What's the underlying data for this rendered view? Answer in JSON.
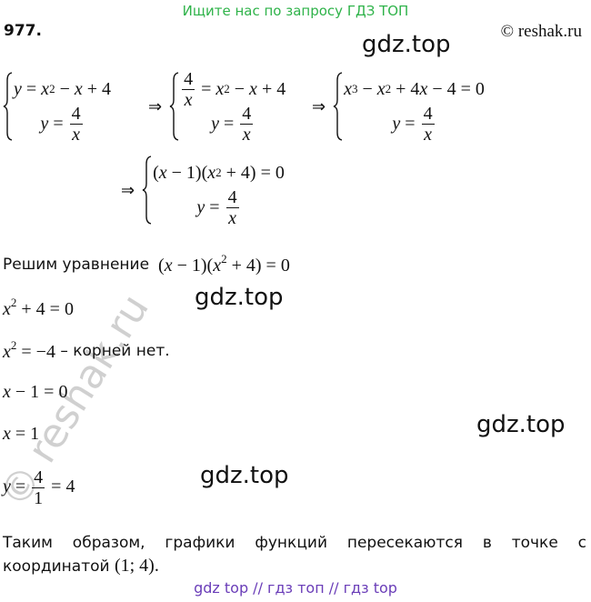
{
  "header": {
    "banner": "Ищите нас по запросу ГДЗ ТОП",
    "number": "977.",
    "copyright": "© reshak.ru"
  },
  "watermarks": [
    "gdz.top",
    "gdz.top",
    "gdz.top",
    "gdz.top"
  ],
  "diagonal_watermark": "© reshak.ru",
  "systems": [
    {
      "lines": [
        [
          "y = x",
          {
            "sup": "2"
          },
          " − x + 4"
        ],
        [
          "y = ",
          {
            "num": "4",
            "den": "x"
          }
        ]
      ]
    },
    {
      "arrow": "⇒",
      "lines": [
        [
          {
            "num": "4",
            "den": "x"
          },
          " = x",
          {
            "sup": "2"
          },
          " − x + 4"
        ],
        [
          "y = ",
          {
            "num": "4",
            "den": "x"
          }
        ]
      ]
    },
    {
      "arrow": "⇒",
      "lines": [
        [
          "x",
          {
            "sup": "3"
          },
          " − x",
          {
            "sup": "2"
          },
          " + 4x − 4 = 0"
        ],
        [
          "y = ",
          {
            "num": "4",
            "den": "x"
          }
        ]
      ]
    },
    {
      "arrow": "⇒",
      "lines": [
        [
          "(x − 1)(x",
          {
            "sup": "2"
          },
          " + 4) = 0"
        ],
        [
          "y = ",
          {
            "num": "4",
            "den": "x"
          }
        ]
      ]
    }
  ],
  "solve": {
    "text": "Решим уравнение",
    "math": [
      "(x − 1)(x",
      {
        "sup": "2"
      },
      " + 4) = 0"
    ]
  },
  "steps": [
    {
      "math": [
        "x",
        {
          "sup": "2"
        },
        " + 4 = 0"
      ]
    },
    {
      "math": [
        "x",
        {
          "sup": "2"
        },
        " = −4"
      ],
      "text": " – корней нет."
    },
    {
      "math": [
        "x − 1 = 0"
      ]
    },
    {
      "math": [
        "x = 1"
      ]
    },
    {
      "math": [
        "y = ",
        {
          "num": "4",
          "den": "1"
        },
        " = 4"
      ]
    }
  ],
  "conclusion": {
    "text": "Таким образом, графики функций пересекаются в точке с координатой",
    "math": [
      "(1; 4)."
    ]
  },
  "footer": "gdz top // гдз топ // гдз top"
}
